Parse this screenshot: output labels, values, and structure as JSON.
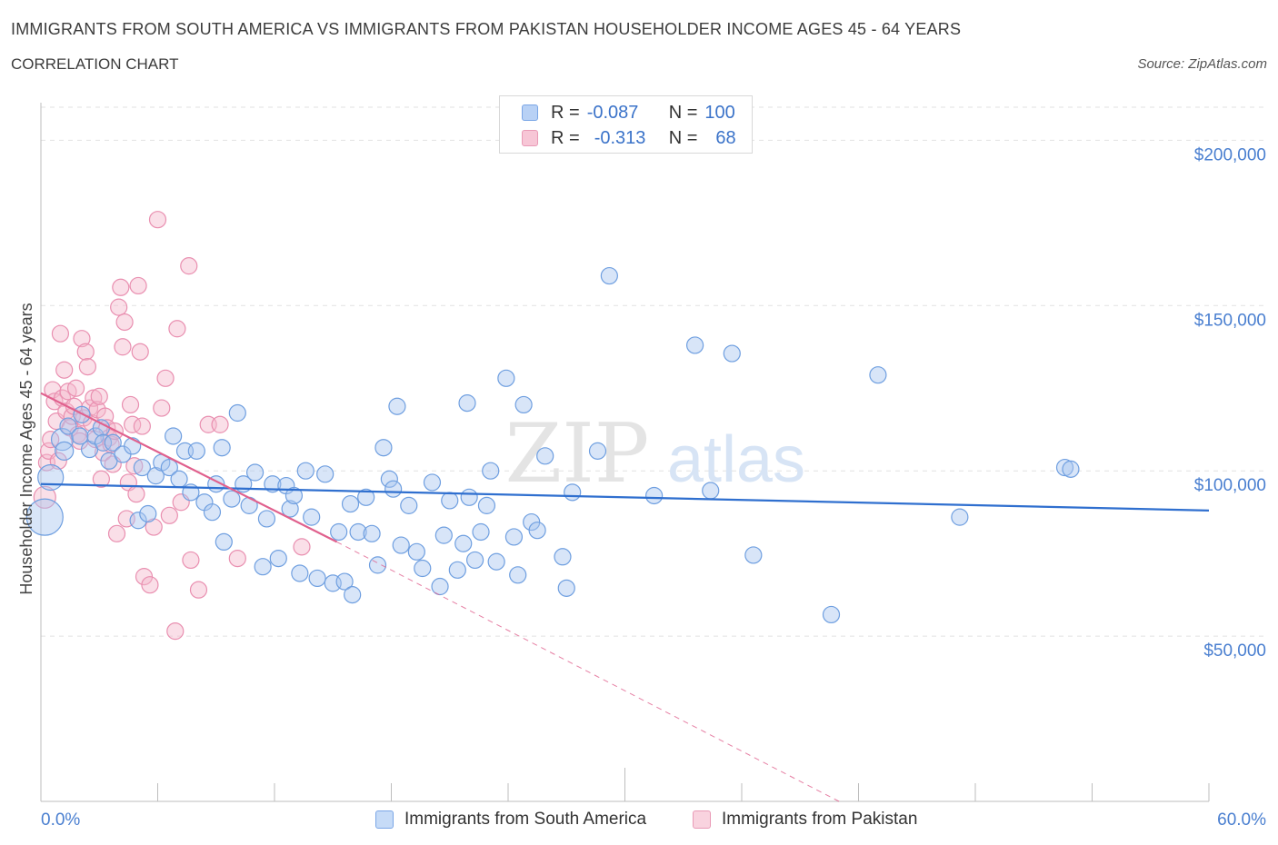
{
  "header": {
    "title": "IMMIGRANTS FROM SOUTH AMERICA VS IMMIGRANTS FROM PAKISTAN HOUSEHOLDER INCOME AGES 45 - 64 YEARS",
    "subtitle": "CORRELATION CHART",
    "source": "Source: ZipAtlas.com"
  },
  "legend": {
    "r_label": "R =",
    "n_label": "N =",
    "series": [
      {
        "name": "Immigrants from South America",
        "r": "-0.087",
        "n": "100"
      },
      {
        "name": "Immigrants from Pakistan",
        "r": "-0.313",
        "n": "68"
      }
    ]
  },
  "colors": {
    "blue_fill": "#a9c6f0",
    "blue_stroke": "#6f9fe0",
    "blue_line": "#2f6fcf",
    "pink_fill": "#f5b8cc",
    "pink_stroke": "#e98fb0",
    "pink_line": "#e0608d",
    "axis_text": "#4a7fd0",
    "grid": "#e2e2e2"
  },
  "chart_data": {
    "type": "scatter",
    "title": "IMMIGRANTS FROM SOUTH AMERICA VS IMMIGRANTS FROM PAKISTAN HOUSEHOLDER INCOME AGES 45 - 64 YEARS",
    "xlabel": "",
    "ylabel": "Householder Income Ages 45 - 64 years",
    "xlim": [
      0,
      60
    ],
    "ylim": [
      0,
      210000
    ],
    "x_tick_labels": [
      "0.0%",
      "60.0%"
    ],
    "y_ticks": [
      50000,
      100000,
      150000,
      200000
    ],
    "y_tick_labels": [
      "$50,000",
      "$100,000",
      "$150,000",
      "$200,000"
    ],
    "watermark": {
      "zip": "ZIP",
      "atlas": "atlas"
    },
    "series": [
      {
        "name": "Immigrants from South America",
        "trend": {
          "x": [
            0,
            60
          ],
          "y": [
            96000,
            88000
          ],
          "style": "solid"
        },
        "points": [
          [
            0.2,
            86000,
            20
          ],
          [
            0.5,
            98000,
            14
          ],
          [
            1.1,
            109500,
            12
          ],
          [
            1.2,
            106000,
            10
          ],
          [
            1.4,
            113500,
            9
          ],
          [
            2.0,
            110500,
            9
          ],
          [
            2.1,
            117000,
            9
          ],
          [
            2.5,
            106500,
            9
          ],
          [
            2.8,
            110500,
            9
          ],
          [
            3.1,
            113000,
            9
          ],
          [
            3.2,
            108500,
            9
          ],
          [
            3.5,
            103000,
            9
          ],
          [
            3.7,
            108500,
            9
          ],
          [
            4.2,
            105000,
            9
          ],
          [
            4.7,
            107500,
            9
          ],
          [
            5.0,
            85000,
            9
          ],
          [
            5.2,
            101000,
            9
          ],
          [
            5.5,
            87000,
            9
          ],
          [
            5.9,
            98500,
            9
          ],
          [
            6.2,
            102500,
            9
          ],
          [
            6.6,
            101000,
            9
          ],
          [
            6.8,
            110500,
            9
          ],
          [
            7.1,
            97500,
            9
          ],
          [
            7.4,
            106000,
            9
          ],
          [
            7.7,
            93500,
            9
          ],
          [
            8.0,
            106000,
            9
          ],
          [
            8.4,
            90500,
            9
          ],
          [
            8.8,
            87500,
            9
          ],
          [
            9.0,
            96000,
            9
          ],
          [
            9.3,
            107000,
            9
          ],
          [
            9.4,
            78500,
            9
          ],
          [
            9.8,
            91500,
            9
          ],
          [
            10.1,
            117500,
            9
          ],
          [
            10.4,
            96000,
            9
          ],
          [
            10.7,
            89500,
            9
          ],
          [
            11.0,
            99500,
            9
          ],
          [
            11.4,
            71000,
            9
          ],
          [
            11.6,
            85500,
            9
          ],
          [
            11.9,
            96000,
            9
          ],
          [
            12.2,
            73500,
            9
          ],
          [
            12.6,
            95500,
            9
          ],
          [
            12.8,
            88500,
            9
          ],
          [
            13.0,
            92500,
            9
          ],
          [
            13.3,
            69000,
            9
          ],
          [
            13.6,
            100000,
            9
          ],
          [
            13.9,
            86000,
            9
          ],
          [
            14.2,
            67500,
            9
          ],
          [
            14.6,
            99000,
            9
          ],
          [
            15.0,
            66000,
            9
          ],
          [
            15.3,
            81500,
            9
          ],
          [
            15.6,
            66500,
            9
          ],
          [
            15.9,
            90000,
            9
          ],
          [
            16.0,
            62500,
            9
          ],
          [
            16.3,
            81500,
            9
          ],
          [
            16.7,
            92000,
            9
          ],
          [
            17.0,
            81000,
            9
          ],
          [
            17.3,
            71500,
            9
          ],
          [
            17.6,
            107000,
            9
          ],
          [
            17.9,
            97500,
            9
          ],
          [
            18.1,
            94500,
            9
          ],
          [
            18.3,
            119500,
            9
          ],
          [
            18.5,
            77500,
            9
          ],
          [
            18.9,
            89500,
            9
          ],
          [
            19.3,
            75500,
            9
          ],
          [
            19.6,
            70500,
            9
          ],
          [
            20.1,
            96500,
            9
          ],
          [
            20.5,
            65000,
            9
          ],
          [
            20.7,
            80500,
            9
          ],
          [
            21.0,
            91000,
            9
          ],
          [
            21.4,
            70000,
            9
          ],
          [
            21.7,
            78000,
            9
          ],
          [
            21.9,
            120500,
            9
          ],
          [
            22.3,
            73000,
            9
          ],
          [
            22.6,
            81500,
            9
          ],
          [
            22.9,
            89500,
            9
          ],
          [
            23.1,
            100000,
            9
          ],
          [
            23.4,
            72500,
            9
          ],
          [
            23.9,
            128000,
            9
          ],
          [
            24.3,
            80000,
            9
          ],
          [
            24.5,
            68500,
            9
          ],
          [
            24.8,
            120000,
            9
          ],
          [
            25.2,
            84500,
            9
          ],
          [
            25.5,
            82000,
            9
          ],
          [
            25.9,
            104500,
            9
          ],
          [
            26.8,
            74000,
            9
          ],
          [
            27.0,
            64500,
            9
          ],
          [
            27.3,
            93500,
            9
          ],
          [
            28.6,
            106000,
            9
          ],
          [
            29.2,
            159000,
            9
          ],
          [
            31.5,
            92500,
            9
          ],
          [
            33.6,
            138000,
            9
          ],
          [
            34.4,
            94000,
            9
          ],
          [
            35.5,
            135500,
            9
          ],
          [
            36.6,
            74500,
            9
          ],
          [
            40.6,
            56500,
            9
          ],
          [
            43.0,
            129000,
            9
          ],
          [
            47.2,
            86000,
            9
          ],
          [
            52.6,
            101000,
            9
          ],
          [
            52.9,
            100500,
            9
          ],
          [
            22.0,
            92000,
            9
          ]
        ]
      },
      {
        "name": "Immigrants from Pakistan",
        "trend": {
          "x": [
            0,
            15.2
          ],
          "y": [
            123500,
            78500
          ],
          "style": "solid"
        },
        "trend_extension": {
          "x": [
            15.2,
            41
          ],
          "y": [
            78500,
            0
          ],
          "style": "dashed"
        },
        "points": [
          [
            0.2,
            92000,
            12
          ],
          [
            0.3,
            102500,
            9
          ],
          [
            0.4,
            106000,
            9
          ],
          [
            0.5,
            109500,
            9
          ],
          [
            0.6,
            124500,
            9
          ],
          [
            0.7,
            121000,
            9
          ],
          [
            0.8,
            115000,
            9
          ],
          [
            0.9,
            103000,
            9
          ],
          [
            1.0,
            141500,
            9
          ],
          [
            1.1,
            122000,
            9
          ],
          [
            1.2,
            130500,
            9
          ],
          [
            1.3,
            118000,
            9
          ],
          [
            1.4,
            124000,
            9
          ],
          [
            1.5,
            113000,
            9
          ],
          [
            1.6,
            116500,
            9
          ],
          [
            1.7,
            119500,
            9
          ],
          [
            1.8,
            125000,
            9
          ],
          [
            1.9,
            111000,
            9
          ],
          [
            2.0,
            109000,
            9
          ],
          [
            2.1,
            140000,
            9
          ],
          [
            2.2,
            116000,
            9
          ],
          [
            2.3,
            136000,
            9
          ],
          [
            2.4,
            131500,
            9
          ],
          [
            2.5,
            119000,
            9
          ],
          [
            2.6,
            114500,
            9
          ],
          [
            2.7,
            122000,
            9
          ],
          [
            2.8,
            109500,
            9
          ],
          [
            2.9,
            118500,
            9
          ],
          [
            3.0,
            122500,
            9
          ],
          [
            3.1,
            97500,
            9
          ],
          [
            3.2,
            105500,
            9
          ],
          [
            3.3,
            116500,
            9
          ],
          [
            3.4,
            113000,
            9
          ],
          [
            3.5,
            110000,
            9
          ],
          [
            3.6,
            108000,
            9
          ],
          [
            3.7,
            102000,
            9
          ],
          [
            3.8,
            112000,
            9
          ],
          [
            3.9,
            81000,
            9
          ],
          [
            4.0,
            149500,
            9
          ],
          [
            4.1,
            155500,
            9
          ],
          [
            4.2,
            137500,
            9
          ],
          [
            4.3,
            145000,
            9
          ],
          [
            4.4,
            85500,
            9
          ],
          [
            4.5,
            96500,
            9
          ],
          [
            4.6,
            120000,
            9
          ],
          [
            4.7,
            114000,
            9
          ],
          [
            4.8,
            101500,
            9
          ],
          [
            4.9,
            93000,
            9
          ],
          [
            5.0,
            156000,
            9
          ],
          [
            5.1,
            136000,
            9
          ],
          [
            5.2,
            113500,
            9
          ],
          [
            5.3,
            68000,
            9
          ],
          [
            5.6,
            65500,
            9
          ],
          [
            5.8,
            83000,
            9
          ],
          [
            6.0,
            176000,
            9
          ],
          [
            6.2,
            119000,
            9
          ],
          [
            6.4,
            128000,
            9
          ],
          [
            6.6,
            86500,
            9
          ],
          [
            7.0,
            143000,
            9
          ],
          [
            7.2,
            90500,
            9
          ],
          [
            7.6,
            162000,
            9
          ],
          [
            7.7,
            73000,
            9
          ],
          [
            8.1,
            64000,
            9
          ],
          [
            8.6,
            114000,
            9
          ],
          [
            9.2,
            114000,
            9
          ],
          [
            10.1,
            73500,
            9
          ],
          [
            13.4,
            77000,
            9
          ],
          [
            6.9,
            51500,
            9
          ]
        ]
      }
    ]
  }
}
